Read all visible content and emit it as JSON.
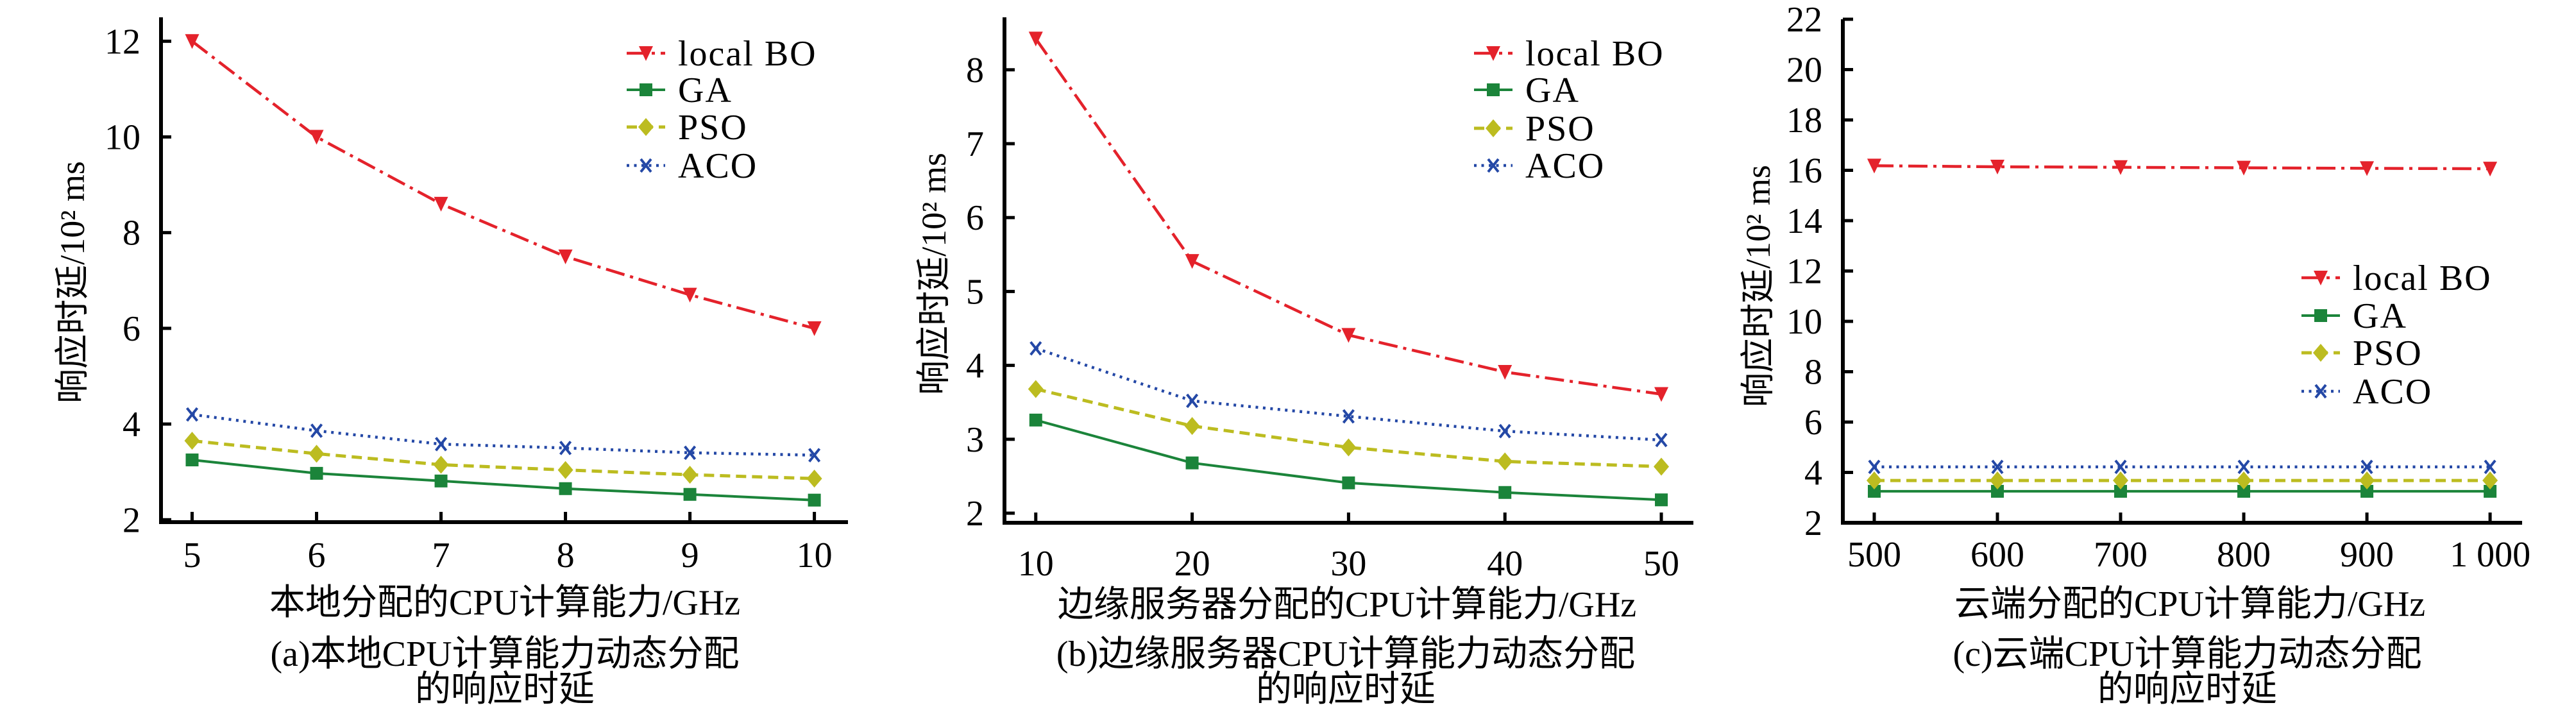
{
  "chart_data": [
    {
      "type": "line",
      "panel_label": "a",
      "caption": [
        "(a)本地CPU计算能力动态分配",
        "的响应时延"
      ],
      "xlabel": "本地分配的CPU计算能力/GHz",
      "ylabel": "响应时延/10² ms",
      "x": [
        5,
        6,
        7,
        8,
        9,
        10
      ],
      "x_tick_labels": [
        "5",
        "6",
        "7",
        "8",
        "9",
        "10"
      ],
      "y_ticks": [
        2,
        4,
        6,
        8,
        10,
        12
      ],
      "y_tick_labels": [
        "2",
        "4",
        "6",
        "8",
        "10",
        "12"
      ],
      "xlim": [
        4.75,
        10.27
      ],
      "ylim": [
        1.95,
        12.5
      ],
      "grid": false,
      "legend_position": "top-right",
      "series": [
        {
          "name": "local BO",
          "values": [
            12.0,
            10.0,
            8.6,
            7.5,
            6.7,
            6.0
          ],
          "color": "#e4222b",
          "marker": "triangle-down",
          "line_style": "dash-dot"
        },
        {
          "name": "GA",
          "values": [
            3.25,
            2.97,
            2.81,
            2.65,
            2.53,
            2.41
          ],
          "color": "#1b843a",
          "marker": "square",
          "line_style": "solid"
        },
        {
          "name": "PSO",
          "values": [
            3.65,
            3.38,
            3.15,
            3.04,
            2.94,
            2.86
          ],
          "color": "#bcbc20",
          "marker": "diamond",
          "line_style": "dashed"
        },
        {
          "name": "ACO",
          "values": [
            4.2,
            3.86,
            3.58,
            3.5,
            3.4,
            3.35
          ],
          "color": "#2448a6",
          "marker": "x",
          "line_style": "dotted"
        }
      ]
    },
    {
      "type": "line",
      "panel_label": "b",
      "caption": [
        "(b)边缘服务器CPU计算能力动态分配",
        "的响应时延"
      ],
      "xlabel": "边缘服务器分配的CPU计算能力/GHz",
      "ylabel": "响应时延/10² ms",
      "x": [
        10,
        20,
        30,
        40,
        50
      ],
      "x_tick_labels": [
        "10",
        "20",
        "30",
        "40",
        "50"
      ],
      "y_ticks": [
        2,
        3,
        4,
        5,
        6,
        7,
        8
      ],
      "y_tick_labels": [
        "2",
        "3",
        "4",
        "5",
        "6",
        "7",
        "8"
      ],
      "xlim": [
        8,
        52.05
      ],
      "ylim": [
        1.87,
        8.71
      ],
      "grid": false,
      "legend_position": "top-right",
      "series": [
        {
          "name": "local BO",
          "values": [
            8.42,
            5.41,
            4.41,
            3.91,
            3.61
          ],
          "color": "#e4222b",
          "marker": "triangle-down",
          "line_style": "dash-dot"
        },
        {
          "name": "GA",
          "values": [
            3.26,
            2.68,
            2.41,
            2.28,
            2.18
          ],
          "color": "#1b843a",
          "marker": "square",
          "line_style": "solid"
        },
        {
          "name": "PSO",
          "values": [
            3.68,
            3.18,
            2.89,
            2.7,
            2.63
          ],
          "color": "#bcbc20",
          "marker": "diamond",
          "line_style": "dashed"
        },
        {
          "name": "ACO",
          "values": [
            4.23,
            3.52,
            3.31,
            3.11,
            2.99
          ],
          "color": "#2448a6",
          "marker": "x",
          "line_style": "dotted"
        }
      ]
    },
    {
      "type": "line",
      "panel_label": "c",
      "caption": [
        "(c)云端CPU计算能力动态分配",
        "的响应时延"
      ],
      "xlabel": "云端分配的CPU计算能力/GHz",
      "ylabel": "响应时延/10² ms",
      "x": [
        500,
        600,
        700,
        800,
        900,
        1000
      ],
      "x_tick_labels": [
        "500",
        "600",
        "700",
        "800",
        "900",
        "1 000"
      ],
      "y_ticks": [
        2,
        4,
        6,
        8,
        10,
        12,
        14,
        16,
        18,
        20,
        22
      ],
      "y_tick_labels": [
        "2",
        "4",
        "6",
        "8",
        "10",
        "12",
        "14",
        "16",
        "18",
        "20",
        "22"
      ],
      "xlim": [
        474.5,
        1026
      ],
      "ylim": [
        2,
        22
      ],
      "grid": false,
      "legend_position": "center-right",
      "series": [
        {
          "name": "local BO",
          "values": [
            16.18,
            16.14,
            16.12,
            16.1,
            16.08,
            16.06
          ],
          "color": "#e4222b",
          "marker": "triangle-down",
          "line_style": "dash-dot"
        },
        {
          "name": "GA",
          "values": [
            3.25,
            3.25,
            3.25,
            3.25,
            3.25,
            3.25
          ],
          "color": "#1b843a",
          "marker": "square",
          "line_style": "solid"
        },
        {
          "name": "PSO",
          "values": [
            3.68,
            3.68,
            3.68,
            3.68,
            3.68,
            3.68
          ],
          "color": "#bcbc20",
          "marker": "diamond",
          "line_style": "dashed"
        },
        {
          "name": "ACO",
          "values": [
            4.22,
            4.22,
            4.22,
            4.22,
            4.22,
            4.22
          ],
          "color": "#2448a6",
          "marker": "x",
          "line_style": "dotted"
        }
      ]
    }
  ]
}
